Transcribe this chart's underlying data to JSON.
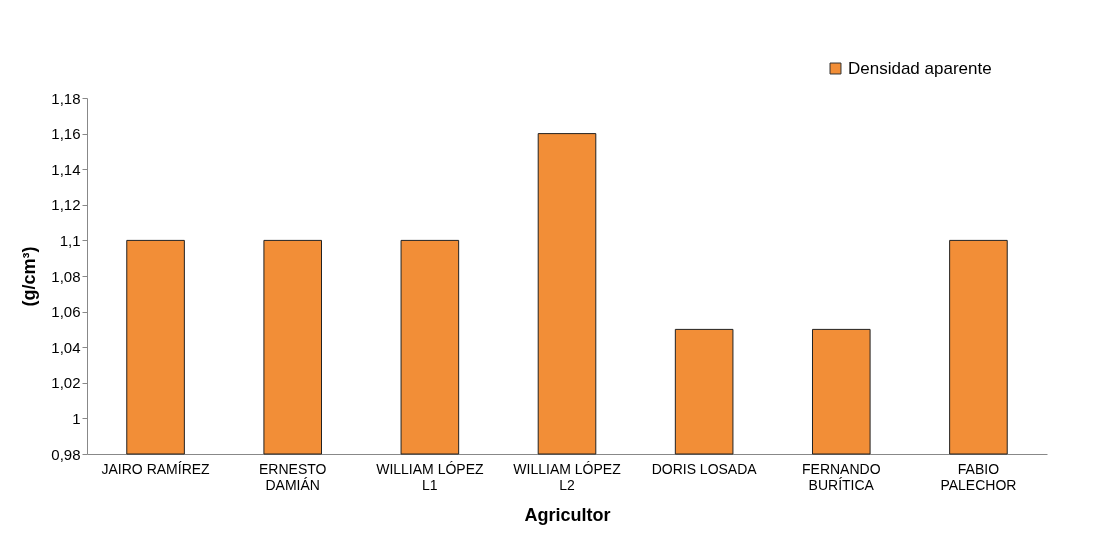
{
  "chart_data": {
    "type": "bar",
    "xlabel": "Agricultor",
    "ylabel": "(g/cm³)",
    "categories": [
      "JAIRO RAMÍREZ",
      "ERNESTO DAMIÁN",
      "WILLIAM LÓPEZ L1",
      "WILLIAM LÓPEZ L2",
      "DORIS LOSADA",
      "FERNANDO BURÍTICA",
      "FABIO PALECHOR"
    ],
    "series": [
      {
        "name": "Densidad aparente",
        "color": "#f28e37",
        "values": [
          1.1,
          1.1,
          1.1,
          1.16,
          1.05,
          1.05,
          1.1
        ]
      }
    ],
    "ylim": [
      0.98,
      1.18
    ],
    "yticks": [
      {
        "value": 0.98,
        "label": "0,98"
      },
      1,
      {
        "value": 1.02,
        "label": "1,02"
      },
      {
        "value": 1.04,
        "label": "1,04"
      },
      {
        "value": 1.06,
        "label": "1,06"
      },
      {
        "value": 1.08,
        "label": "1,08"
      },
      {
        "value": 1.1,
        "label": "1,1"
      },
      {
        "value": 1.12,
        "label": "1,12"
      },
      {
        "value": 1.14,
        "label": "1,14"
      },
      {
        "value": 1.16,
        "label": "1,16"
      },
      {
        "value": 1.18,
        "label": "1,18"
      }
    ],
    "grid": false,
    "legend": "top right"
  }
}
